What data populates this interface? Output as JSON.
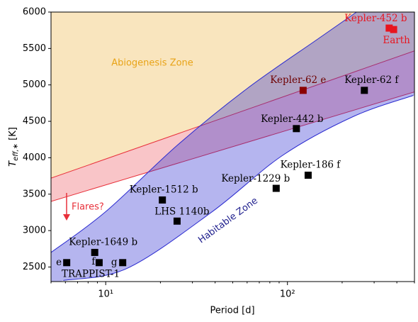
{
  "chart_data": {
    "type": "scatter",
    "xlabel": "Period [d]",
    "ylabel": {
      "symbol": "T",
      "subscript": "eff,∗",
      "unit": " [K]"
    },
    "xscale": "log",
    "xlim": [
      5,
      500
    ],
    "ylim": [
      2300,
      6000
    ],
    "xticks": [
      {
        "value": 10,
        "label": "10¹"
      },
      {
        "value": 100,
        "label": "10²"
      }
    ],
    "xminorticks": [
      5,
      6,
      7,
      8,
      9,
      20,
      30,
      40,
      50,
      60,
      70,
      80,
      90,
      200,
      300,
      400,
      500
    ],
    "yticks": [
      2500,
      3000,
      3500,
      4000,
      4500,
      5000,
      5500,
      6000
    ],
    "points": [
      {
        "label": "e",
        "x": 6.1,
        "y": 2560,
        "color": "#000000"
      },
      {
        "label": "f",
        "x": 9.2,
        "y": 2560,
        "color": "#000000"
      },
      {
        "label": "g",
        "x": 12.4,
        "y": 2560,
        "color": "#000000"
      },
      {
        "label": "Kepler-1649 b",
        "x": 8.7,
        "y": 2700,
        "color": "#000000"
      },
      {
        "label": "Kepler-1512 b",
        "x": 20.5,
        "y": 3420,
        "color": "#000000"
      },
      {
        "label": "LHS 1140b",
        "x": 24.7,
        "y": 3130,
        "color": "#000000"
      },
      {
        "label": "Kepler-1229 b",
        "x": 86.7,
        "y": 3580,
        "color": "#000000"
      },
      {
        "label": "Kepler-186 f",
        "x": 130,
        "y": 3760,
        "color": "#000000"
      },
      {
        "label": "Kepler-442 b",
        "x": 112,
        "y": 4400,
        "color": "#000000"
      },
      {
        "label": "Kepler-62 f",
        "x": 265,
        "y": 4925,
        "color": "#000000"
      },
      {
        "label": "Kepler-62 e",
        "x": 122,
        "y": 4925,
        "color": "#8b0000"
      },
      {
        "label": "Kepler-452 b",
        "x": 363,
        "y": 5780,
        "color": "#e8141e"
      },
      {
        "label": "Earth",
        "x": 384,
        "y": 5760,
        "color": "#e8141e"
      }
    ],
    "group_label": "TRAPPIST-1",
    "red_band": {
      "color": "#e8303a",
      "upper": {
        "x": [
          5,
          500
        ],
        "y": [
          3720,
          5467
        ]
      },
      "lower": {
        "x": [
          5,
          500
        ],
        "y": [
          3400,
          4904
        ]
      }
    },
    "abiogenesis_zone": {
      "label": "Abiogenesis Zone",
      "color": "#e8a317"
    },
    "habitable_zone": {
      "label": "Habitable Zone",
      "color": "#2b2bd0",
      "upper": {
        "x": [
          5,
          10,
          25,
          60,
          147,
          240
        ],
        "y": [
          2700,
          3260,
          4180,
          4950,
          5630,
          6000
        ]
      },
      "lower": {
        "x": [
          5.84,
          13.1,
          38.4,
          94,
          230,
          493
        ],
        "y": [
          2316,
          2481,
          3256,
          4032,
          4565,
          4856
        ]
      }
    },
    "flares_label": "Flares?"
  }
}
